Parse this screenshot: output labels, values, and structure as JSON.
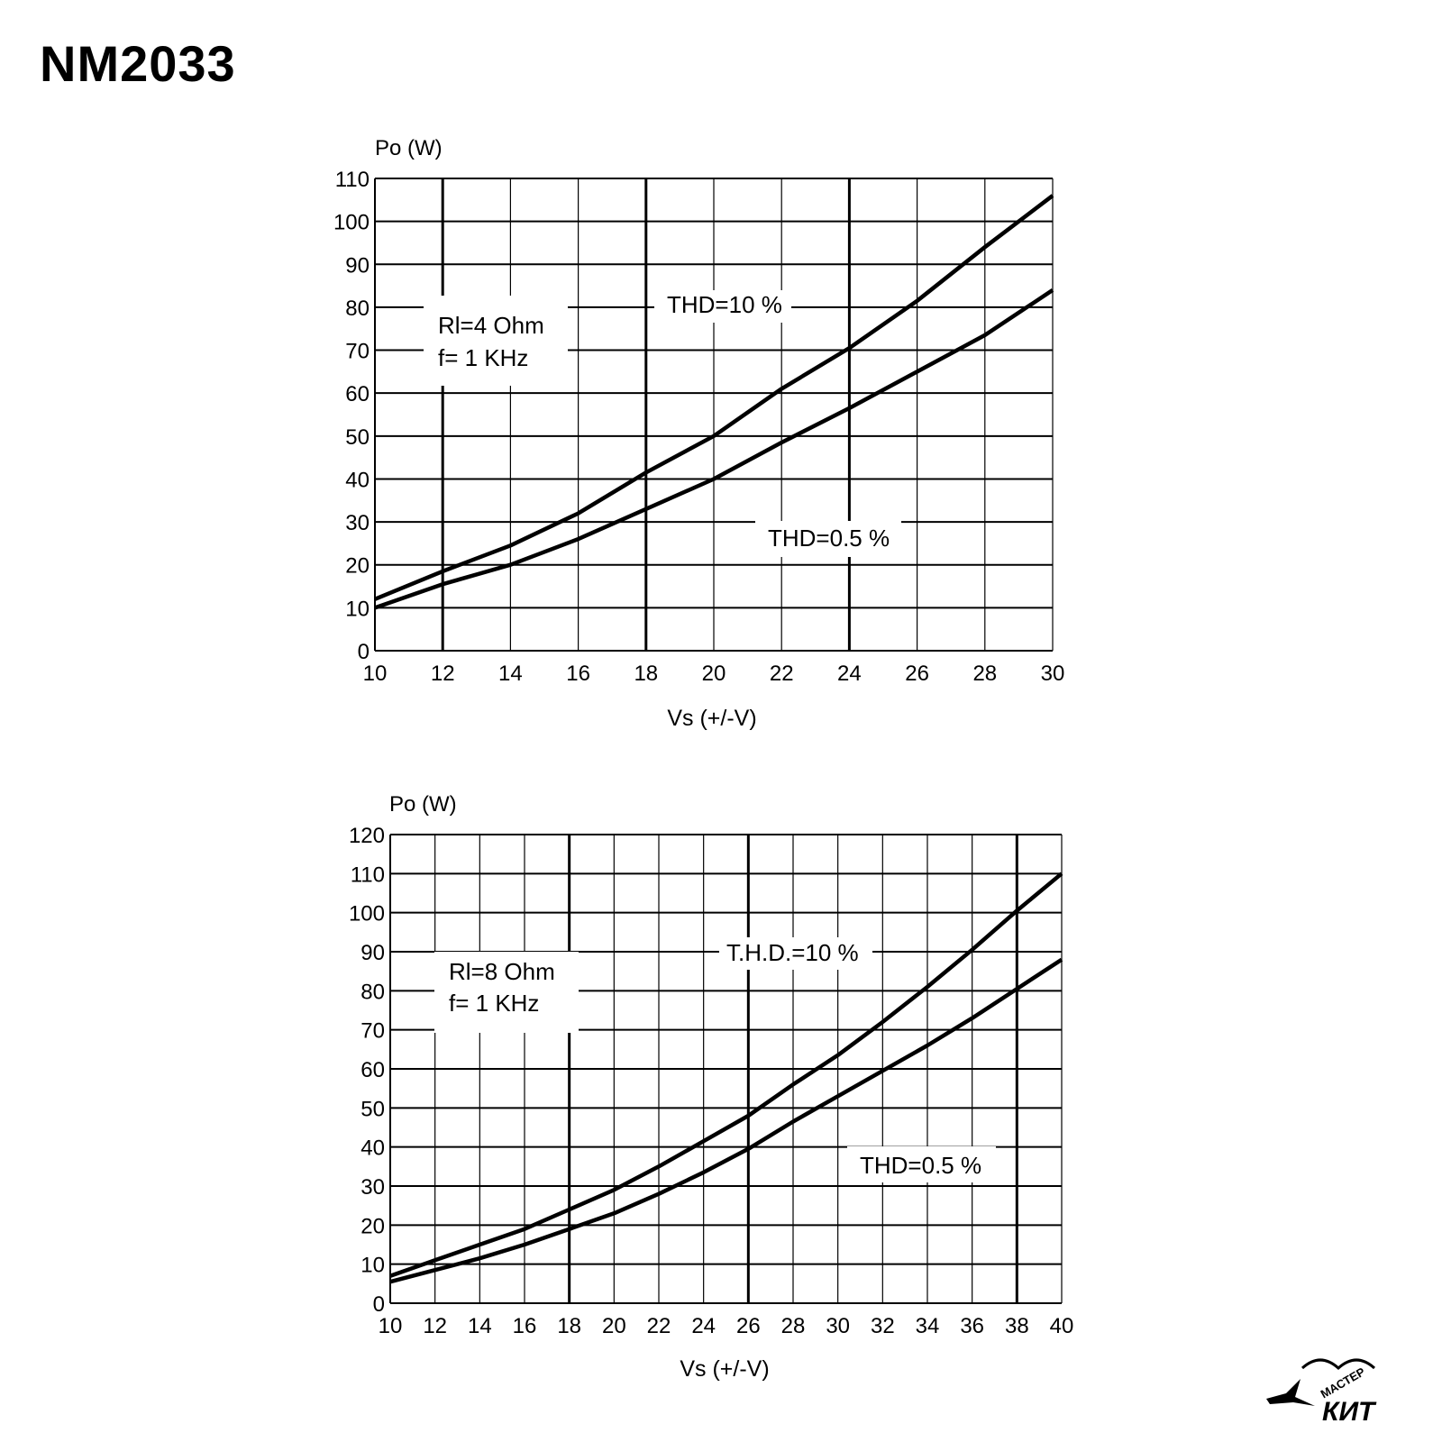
{
  "page": {
    "title": "NM2033",
    "logo_text_top": "МАСТЕР",
    "logo_text_main": "КИТ"
  },
  "chart_data": [
    {
      "type": "line",
      "ylabel": "Po (W)",
      "xlabel": "Vs (+/-V)",
      "xlim": [
        10,
        30
      ],
      "ylim": [
        0,
        110
      ],
      "xticks": [
        10,
        12,
        14,
        16,
        18,
        20,
        22,
        24,
        26,
        28,
        30
      ],
      "yticks": [
        0,
        10,
        20,
        30,
        40,
        50,
        60,
        70,
        80,
        90,
        100,
        110
      ],
      "major_x": [
        12,
        18,
        24
      ],
      "grid": true,
      "annotations": [
        "Rl=4 Ohm",
        "f= 1 KHz"
      ],
      "series": [
        {
          "name": "THD=10 %",
          "x": [
            10,
            12,
            14,
            16,
            18,
            20,
            22,
            24,
            26,
            28,
            30
          ],
          "y": [
            12,
            18.5,
            24.5,
            32,
            41.5,
            50,
            61,
            70.5,
            81.5,
            94,
            106
          ]
        },
        {
          "name": "THD=0.5 %",
          "x": [
            10,
            12,
            14,
            16,
            18,
            20,
            22,
            24,
            26,
            28,
            30
          ],
          "y": [
            10,
            15.5,
            20,
            26,
            33,
            40,
            48.5,
            56.5,
            65,
            73.5,
            84
          ]
        }
      ]
    },
    {
      "type": "line",
      "ylabel": "Po (W)",
      "xlabel": "Vs (+/-V)",
      "xlim": [
        10,
        40
      ],
      "ylim": [
        0,
        120
      ],
      "xticks": [
        10,
        12,
        14,
        16,
        18,
        20,
        22,
        24,
        26,
        28,
        30,
        32,
        34,
        36,
        38,
        40
      ],
      "yticks": [
        0,
        10,
        20,
        30,
        40,
        50,
        60,
        70,
        80,
        90,
        100,
        110,
        120
      ],
      "major_x": [
        18,
        26,
        38
      ],
      "grid": true,
      "annotations": [
        "Rl=8 Ohm",
        "f= 1 KHz"
      ],
      "series": [
        {
          "name": "T.H.D.=10 %",
          "x": [
            10,
            12,
            14,
            16,
            18,
            20,
            22,
            24,
            26,
            28,
            30,
            32,
            34,
            36,
            38,
            40
          ],
          "y": [
            7,
            11,
            15,
            19,
            24,
            29,
            35,
            41.5,
            48,
            56,
            63.5,
            72,
            81,
            90.5,
            100.5,
            110
          ]
        },
        {
          "name": "THD=0.5 %",
          "x": [
            10,
            12,
            14,
            16,
            18,
            20,
            22,
            24,
            26,
            28,
            30,
            32,
            34,
            36,
            38,
            40
          ],
          "y": [
            5.5,
            8.5,
            11.5,
            15,
            19,
            23,
            28,
            33.5,
            39.5,
            46.5,
            53,
            59.5,
            66,
            73,
            80.5,
            88
          ]
        }
      ]
    }
  ]
}
